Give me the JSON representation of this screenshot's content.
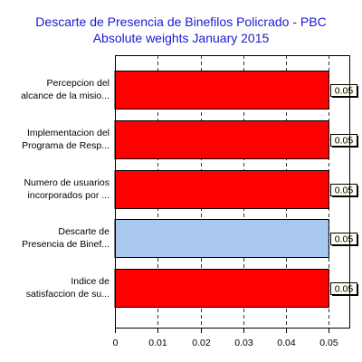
{
  "chart_data": {
    "type": "bar",
    "orientation": "horizontal",
    "title": "Descarte de Presencia de Binefilos Policrado - PBC",
    "subtitle": "Absolute weights January 2015",
    "xlabel": "",
    "ylabel": "",
    "categories": [
      [
        "Percepcion del",
        "alcance de la misio..."
      ],
      [
        "Implementacion del",
        "Programa de Resp..."
      ],
      [
        "Numero de usuarios",
        "incorporados por ..."
      ],
      [
        "Descarte de",
        "Presencia de Binef..."
      ],
      [
        "Indice de",
        "satisfaccion de su..."
      ]
    ],
    "values": [
      0.05,
      0.05,
      0.05,
      0.05,
      0.05
    ],
    "data_labels": [
      "0.05",
      "0.05",
      "0.05",
      "0.05",
      "0.05"
    ],
    "xlim": [
      0,
      0.055
    ],
    "ticks": [
      0,
      0.01,
      0.02,
      0.03,
      0.04,
      0.05
    ],
    "tick_labels": [
      "0",
      "0.01",
      "0.02",
      "0.03",
      "0.04",
      "0.05"
    ],
    "grid": "vertical dashed",
    "colors": {
      "bar": "#ff0000",
      "highlight": "#a9c8ee",
      "title": "#1a1ad6",
      "label_shadow": "#000000"
    },
    "highlight_index": 3
  }
}
